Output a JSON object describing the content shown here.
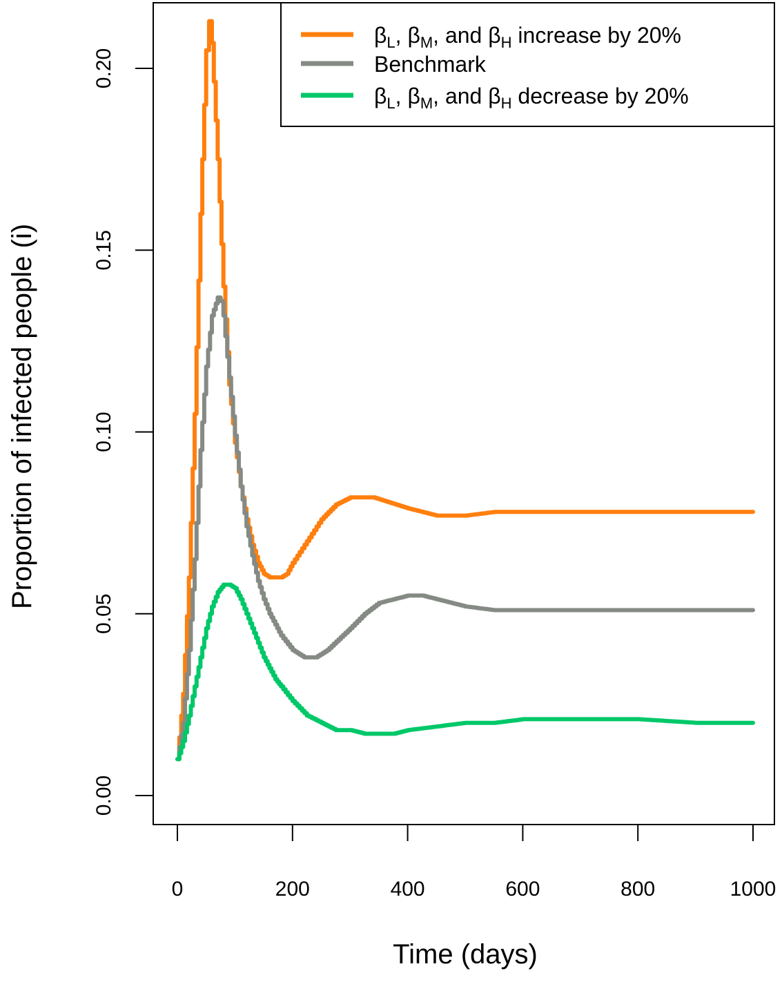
{
  "chart_data": {
    "type": "line",
    "xlabel": "Time (days)",
    "ylabel": "Proportion of infected people (i)",
    "xlim": [
      0,
      1000
    ],
    "ylim": [
      0,
      0.215
    ],
    "xticks": [
      0,
      200,
      400,
      600,
      800,
      1000
    ],
    "xtick_labels": [
      "0",
      "200",
      "400",
      "600",
      "800",
      "1000"
    ],
    "yticks": [
      0,
      0.05,
      0.1,
      0.15,
      0.2
    ],
    "ytick_labels": [
      "0.00",
      "0.05",
      "0.10",
      "0.15",
      "0.20"
    ],
    "grid": false,
    "legend_position": "top-right",
    "series": [
      {
        "name_parts": [
          "β",
          "L",
          ", β",
          "M",
          ", and β",
          "H",
          " increase by 20%"
        ],
        "color": "#FF7F0E",
        "x": [
          0,
          10,
          20,
          30,
          40,
          50,
          55,
          60,
          70,
          80,
          90,
          100,
          110,
          120,
          130,
          140,
          150,
          160,
          170,
          180,
          190,
          200,
          225,
          250,
          275,
          300,
          325,
          340,
          360,
          400,
          450,
          500,
          550,
          600,
          700,
          800,
          900,
          1000
        ],
        "y": [
          0.01,
          0.028,
          0.06,
          0.105,
          0.16,
          0.205,
          0.213,
          0.207,
          0.175,
          0.14,
          0.113,
          0.097,
          0.085,
          0.076,
          0.069,
          0.064,
          0.061,
          0.06,
          0.06,
          0.06,
          0.061,
          0.064,
          0.07,
          0.076,
          0.08,
          0.082,
          0.082,
          0.082,
          0.081,
          0.079,
          0.077,
          0.077,
          0.078,
          0.078,
          0.078,
          0.078,
          0.078,
          0.078
        ]
      },
      {
        "name": "Benchmark",
        "color": "#858B84",
        "x": [
          0,
          10,
          20,
          30,
          40,
          50,
          60,
          70,
          75,
          80,
          90,
          100,
          110,
          120,
          130,
          140,
          150,
          160,
          170,
          180,
          200,
          220,
          240,
          260,
          280,
          300,
          325,
          350,
          375,
          400,
          425,
          450,
          500,
          550,
          600,
          700,
          800,
          900,
          1000
        ],
        "y": [
          0.01,
          0.02,
          0.04,
          0.065,
          0.095,
          0.118,
          0.132,
          0.137,
          0.136,
          0.132,
          0.115,
          0.099,
          0.085,
          0.074,
          0.066,
          0.059,
          0.054,
          0.05,
          0.047,
          0.044,
          0.04,
          0.038,
          0.038,
          0.04,
          0.043,
          0.046,
          0.05,
          0.053,
          0.054,
          0.055,
          0.055,
          0.054,
          0.052,
          0.051,
          0.051,
          0.051,
          0.051,
          0.051,
          0.051
        ]
      },
      {
        "name_parts": [
          "β",
          "L",
          ", β",
          "M",
          ", and β",
          "H",
          " decrease by 20%"
        ],
        "color": "#00C869",
        "x": [
          0,
          10,
          20,
          30,
          40,
          50,
          60,
          70,
          80,
          90,
          100,
          110,
          120,
          130,
          140,
          150,
          160,
          170,
          180,
          200,
          225,
          250,
          275,
          300,
          325,
          350,
          375,
          400,
          450,
          500,
          550,
          600,
          650,
          700,
          750,
          800,
          900,
          1000
        ],
        "y": [
          0.01,
          0.015,
          0.022,
          0.03,
          0.038,
          0.046,
          0.052,
          0.056,
          0.058,
          0.058,
          0.057,
          0.054,
          0.05,
          0.046,
          0.042,
          0.038,
          0.035,
          0.032,
          0.03,
          0.026,
          0.022,
          0.02,
          0.018,
          0.018,
          0.017,
          0.017,
          0.017,
          0.018,
          0.019,
          0.02,
          0.02,
          0.021,
          0.021,
          0.021,
          0.021,
          0.021,
          0.02,
          0.02
        ]
      }
    ]
  }
}
